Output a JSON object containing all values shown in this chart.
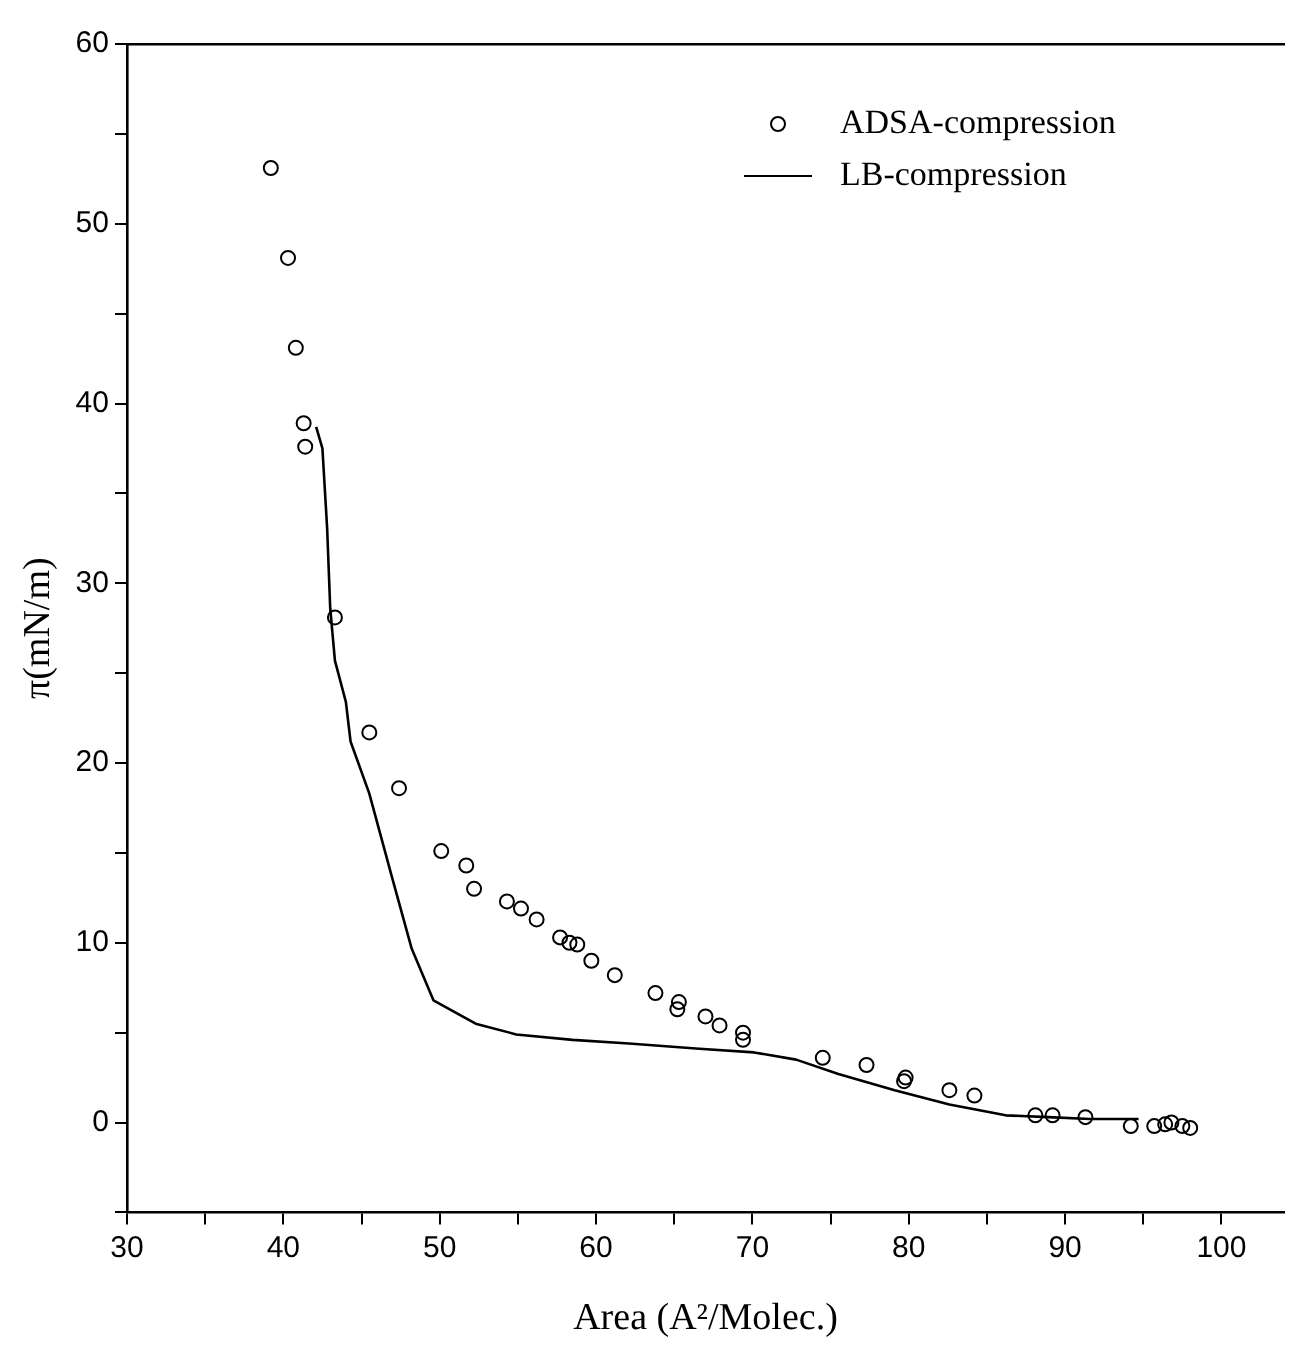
{
  "chart_data": {
    "type": "scatter",
    "xlabel": "Area (A²/Molec.)",
    "ylabel": "π(mN/m)",
    "xlim": [
      30,
      104
    ],
    "ylim": [
      -5,
      60
    ],
    "xticks": [
      30,
      {
        "value": 35,
        "label": null
      },
      40,
      {
        "value": 45,
        "label": null
      },
      50,
      {
        "value": 55,
        "label": null
      },
      60,
      {
        "value": 65,
        "label": null
      },
      70,
      {
        "value": 75,
        "label": null
      },
      80,
      {
        "value": 85,
        "label": null
      },
      90,
      {
        "value": 95,
        "label": null
      },
      100
    ],
    "yticks": [
      {
        "value": -5,
        "label": null
      },
      0,
      {
        "value": 5,
        "label": null
      },
      10,
      {
        "value": 15,
        "label": null
      },
      20,
      {
        "value": 25,
        "label": null
      },
      30,
      {
        "value": 35,
        "label": null
      },
      40,
      {
        "value": 45,
        "label": null
      },
      50,
      {
        "value": 55,
        "label": null
      },
      60
    ],
    "grid": false,
    "legend": "top right",
    "series": [
      {
        "name": "ADSA-compression",
        "type": "scatter",
        "marker": "circle",
        "color": "#000000",
        "x": [
          39.2,
          40.3,
          40.8,
          41.3,
          41.4,
          43.3,
          45.5,
          47.4,
          50.1,
          51.7,
          52.2,
          54.3,
          55.2,
          56.2,
          57.7,
          58.3,
          58.8,
          59.7,
          61.2,
          63.8,
          65.3,
          65.2,
          67.0,
          67.9,
          69.4,
          69.4,
          74.5,
          77.3,
          79.8,
          79.7,
          82.6,
          84.2,
          88.1,
          89.2,
          91.3,
          94.2,
          95.7,
          96.4,
          96.8,
          97.5,
          98.0
        ],
        "values": [
          53.1,
          48.1,
          43.1,
          38.9,
          37.6,
          28.1,
          21.7,
          18.6,
          15.1,
          14.3,
          13.0,
          12.3,
          11.9,
          11.3,
          10.3,
          10.0,
          9.9,
          9.0,
          8.2,
          7.2,
          6.7,
          6.3,
          5.9,
          5.4,
          5.0,
          4.6,
          3.6,
          3.2,
          2.5,
          2.3,
          1.8,
          1.5,
          0.4,
          0.4,
          0.3,
          -0.2,
          -0.2,
          -0.1,
          0.0,
          -0.2,
          -0.3
        ]
      },
      {
        "name": "LB-compression",
        "type": "line",
        "marker": "none",
        "line_style": "solid",
        "color": "#000000",
        "x": [
          42.1,
          42.5,
          42.8,
          43.0,
          43.3,
          44.0,
          44.3,
          45.5,
          46.9,
          48.2,
          49.6,
          52.3,
          54.9,
          58.5,
          62.1,
          66.6,
          70.1,
          72.8,
          75.5,
          79.1,
          82.6,
          86.2,
          88.9,
          91.6,
          94.7
        ],
        "values": [
          38.7,
          37.5,
          33.1,
          28.6,
          25.7,
          23.4,
          21.2,
          18.3,
          13.8,
          9.7,
          6.8,
          5.5,
          4.9,
          4.6,
          4.4,
          4.1,
          3.9,
          3.5,
          2.7,
          1.8,
          1.0,
          0.4,
          0.3,
          0.2,
          0.2
        ]
      }
    ]
  }
}
